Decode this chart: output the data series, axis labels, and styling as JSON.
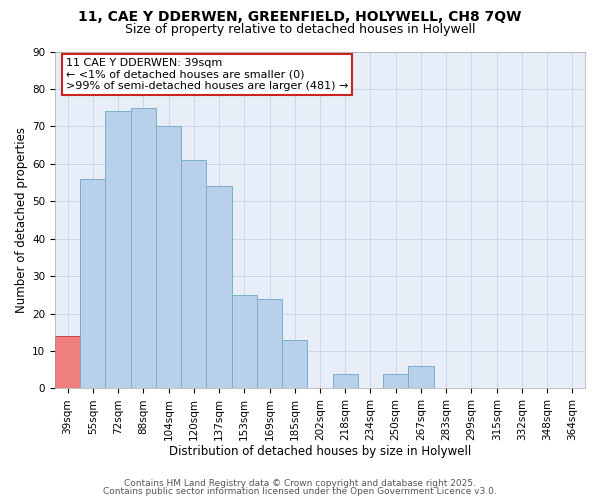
{
  "title_line1": "11, CAE Y DDERWEN, GREENFIELD, HOLYWELL, CH8 7QW",
  "title_line2": "Size of property relative to detached houses in Holywell",
  "xlabel": "Distribution of detached houses by size in Holywell",
  "ylabel": "Number of detached properties",
  "categories": [
    "39sqm",
    "55sqm",
    "72sqm",
    "88sqm",
    "104sqm",
    "120sqm",
    "137sqm",
    "153sqm",
    "169sqm",
    "185sqm",
    "202sqm",
    "218sqm",
    "234sqm",
    "250sqm",
    "267sqm",
    "283sqm",
    "299sqm",
    "315sqm",
    "332sqm",
    "348sqm",
    "364sqm"
  ],
  "values": [
    14,
    56,
    74,
    75,
    70,
    61,
    54,
    25,
    24,
    13,
    0,
    4,
    0,
    4,
    6,
    0,
    0,
    0,
    0,
    0,
    0
  ],
  "bar_color": "#b8d0ea",
  "bar_edge_color": "#7aaecc",
  "highlight_bar_color": "#f08080",
  "highlight_bar_edge_color": "#cc4444",
  "highlight_index": 0,
  "ylim": [
    0,
    90
  ],
  "yticks": [
    0,
    10,
    20,
    30,
    40,
    50,
    60,
    70,
    80,
    90
  ],
  "annotation_box_text": "11 CAE Y DDERWEN: 39sqm\n← <1% of detached houses are smaller (0)\n>99% of semi-detached houses are larger (481) →",
  "annotation_box_color": "#ffffff",
  "annotation_box_edge_color": "#cc2222",
  "footer_line1": "Contains HM Land Registry data © Crown copyright and database right 2025.",
  "footer_line2": "Contains public sector information licensed under the Open Government Licence v3.0.",
  "background_color": "#ffffff",
  "plot_bg_color": "#e8eef8",
  "grid_color": "#c8d8e8",
  "title_fontsize": 10,
  "subtitle_fontsize": 9,
  "axis_label_fontsize": 8.5,
  "tick_fontsize": 7.5,
  "annotation_fontsize": 8,
  "footer_fontsize": 6.5
}
